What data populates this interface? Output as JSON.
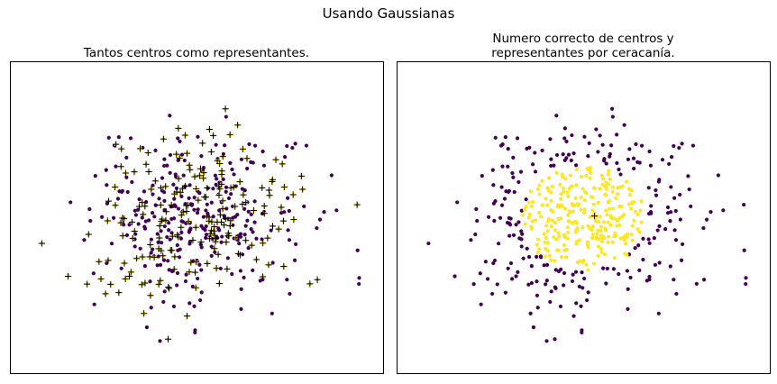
{
  "figure": {
    "suptitle": "Usando Gaussianas"
  },
  "colors": {
    "purple": "#440154",
    "yellow": "#fde725",
    "marker": "#000000",
    "edge": "#2a2a2a"
  },
  "chart_data": [
    {
      "type": "scatter",
      "title": "Tantos centros como representantes.",
      "title_lines": [
        "Tantos centros como representantes."
      ],
      "xlabel": "",
      "ylabel": "",
      "xlim": [
        -3.6,
        3.6
      ],
      "ylim": [
        -3.6,
        3.6
      ],
      "grid": false,
      "axes_ticks": false,
      "series": [],
      "point_count": 500,
      "seed": 7,
      "distribution": "standard normal 2D",
      "color_rule": "mostly purple points with yellow points mixed in",
      "overlay": "black + marker on each yellow point"
    },
    {
      "type": "scatter",
      "title": "Numero correcto de centros y\n representantes por ceracanía.",
      "title_lines": [
        "Numero correcto de centros y",
        "representantes por ceracanía."
      ],
      "xlabel": "",
      "ylabel": "",
      "xlim": [
        -3.6,
        3.6
      ],
      "ylim": [
        -3.6,
        3.6
      ],
      "grid": false,
      "axes_ticks": false,
      "series": [],
      "point_count": 500,
      "seed": 7,
      "distribution": "standard normal 2D",
      "color_rule": "yellow inside radius 1.2 of center, purple outside",
      "radius": 1.2,
      "overlay": "single black + marker at center",
      "center": [
        0.2,
        0.05
      ]
    }
  ]
}
